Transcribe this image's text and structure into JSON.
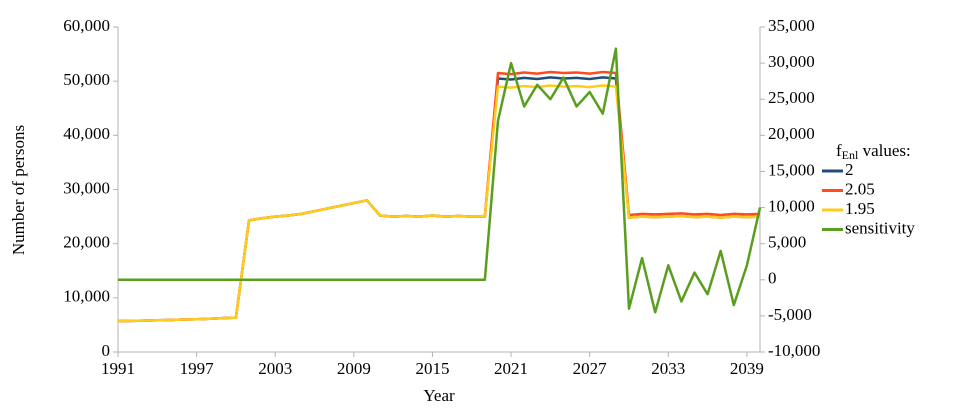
{
  "chart_data": {
    "type": "line",
    "x_label": "Year",
    "y_label": "Number of persons",
    "legend_title": {
      "main": "f",
      "sub": "Enl",
      "rest": " values:"
    },
    "legend": "right",
    "x": [
      1991,
      1992,
      1993,
      1994,
      1995,
      1996,
      1997,
      1998,
      1999,
      2000,
      2001,
      2002,
      2003,
      2004,
      2005,
      2006,
      2007,
      2008,
      2009,
      2010,
      2011,
      2012,
      2013,
      2014,
      2015,
      2016,
      2017,
      2018,
      2019,
      2020,
      2021,
      2022,
      2023,
      2024,
      2025,
      2026,
      2027,
      2028,
      2029,
      2030,
      2031,
      2032,
      2033,
      2034,
      2035,
      2036,
      2037,
      2038,
      2039,
      2040
    ],
    "xlim": [
      1991,
      2040
    ],
    "xticks": [
      1991,
      1997,
      2003,
      2009,
      2015,
      2021,
      2027,
      2033,
      2039
    ],
    "ylim": [
      0,
      60000
    ],
    "yticks": [
      0,
      {
        "value": 10000,
        "label": "10,000"
      },
      {
        "value": 20000,
        "label": "20,000"
      },
      {
        "value": 30000,
        "label": "30,000"
      },
      {
        "value": 40000,
        "label": "40,000"
      },
      {
        "value": 50000,
        "label": "50,000"
      },
      {
        "value": 60000,
        "label": "60,000"
      }
    ],
    "y2lim": [
      -10000,
      35000
    ],
    "y2ticks": [
      {
        "value": -10000,
        "label": "-10,000"
      },
      {
        "value": -5000,
        "label": "-5,000"
      },
      0,
      {
        "value": 5000,
        "label": "5,000"
      },
      {
        "value": 10000,
        "label": "10,000"
      },
      {
        "value": 15000,
        "label": "15,000"
      },
      {
        "value": 20000,
        "label": "20,000"
      },
      {
        "value": 25000,
        "label": "25,000"
      },
      {
        "value": 30000,
        "label": "30,000"
      },
      {
        "value": 35000,
        "label": "35,000"
      }
    ],
    "series": [
      {
        "name": "2",
        "color": "#1f4e79",
        "values": [
          5700,
          5750,
          5800,
          5850,
          5900,
          6000,
          6050,
          6150,
          6250,
          6350,
          24300,
          24700,
          25000,
          25200,
          25500,
          26000,
          26500,
          27000,
          27500,
          28000,
          25200,
          25000,
          25100,
          25000,
          25200,
          25000,
          25100,
          25000,
          25000,
          50500,
          50300,
          50600,
          50400,
          50700,
          50500,
          50600,
          50400,
          50700,
          50500,
          24800,
          25000,
          24900,
          25000,
          25100,
          24900,
          25000,
          24800,
          25000,
          24900,
          25000
        ]
      },
      {
        "name": "2.05",
        "color": "#ff4b1f",
        "values": [
          5700,
          5750,
          5800,
          5850,
          5900,
          6000,
          6050,
          6150,
          6250,
          6350,
          24300,
          24700,
          25000,
          25200,
          25500,
          26000,
          26500,
          27000,
          27500,
          28000,
          25200,
          25000,
          25100,
          25000,
          25200,
          25000,
          25100,
          25000,
          25000,
          51500,
          51300,
          51600,
          51400,
          51700,
          51500,
          51600,
          51400,
          51700,
          51500,
          25300,
          25500,
          25400,
          25500,
          25600,
          25400,
          25500,
          25300,
          25500,
          25400,
          25500
        ]
      },
      {
        "name": "1.95",
        "color": "#ffcc1a",
        "values": [
          5700,
          5750,
          5800,
          5850,
          5900,
          6000,
          6050,
          6150,
          6250,
          6350,
          24300,
          24700,
          25000,
          25200,
          25500,
          26000,
          26500,
          27000,
          27500,
          28000,
          25200,
          25000,
          25100,
          25000,
          25200,
          25000,
          25100,
          25000,
          25000,
          49000,
          48800,
          49100,
          48900,
          49200,
          49000,
          49100,
          48900,
          49200,
          49000,
          24800,
          25000,
          24900,
          25000,
          25100,
          24900,
          25000,
          24800,
          25000,
          24900,
          25000
        ]
      },
      {
        "name": "sensitivity",
        "color": "#5a9e1f",
        "axis": "y2",
        "values": [
          0,
          0,
          0,
          0,
          0,
          0,
          0,
          0,
          0,
          0,
          0,
          0,
          0,
          0,
          0,
          0,
          0,
          0,
          0,
          0,
          0,
          0,
          0,
          0,
          0,
          0,
          0,
          0,
          0,
          22000,
          30000,
          24000,
          27000,
          25000,
          28000,
          24000,
          26000,
          23000,
          32000,
          -4000,
          3000,
          -4500,
          2000,
          -3000,
          1000,
          -2000,
          4000,
          -3500,
          2000,
          10000
        ]
      }
    ]
  }
}
